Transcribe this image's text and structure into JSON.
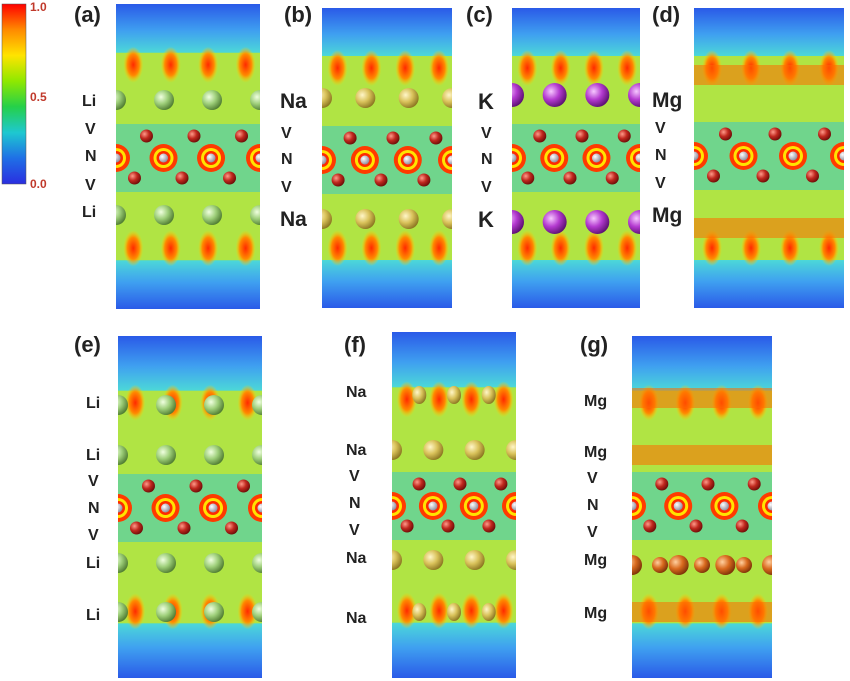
{
  "colorbar": {
    "ticks": [
      "1.0",
      "0.5",
      "0.0"
    ],
    "stops": [
      "#ff0000",
      "#ff8a00",
      "#ffe400",
      "#8fe800",
      "#25d04a",
      "#1ec8d0",
      "#1f6fe6",
      "#2a2ee0"
    ]
  },
  "panels": [
    {
      "label": "(a)",
      "labels": [
        "Li",
        "V",
        "N",
        "V",
        "Li"
      ]
    },
    {
      "label": "(b)",
      "labels": [
        "Na",
        "V",
        "N",
        "V",
        "Na"
      ]
    },
    {
      "label": "(c)",
      "labels": [
        "K",
        "V",
        "N",
        "V",
        "K"
      ]
    },
    {
      "label": "(d)",
      "labels": [
        "Mg",
        "V",
        "N",
        "V",
        "Mg"
      ]
    },
    {
      "label": "(e)",
      "labels": [
        "Li",
        "Li",
        "V",
        "N",
        "V",
        "Li",
        "Li"
      ]
    },
    {
      "label": "(f)",
      "labels": [
        "Na",
        "Na",
        "V",
        "N",
        "V",
        "Na",
        "Na"
      ]
    },
    {
      "label": "(g)",
      "labels": [
        "Mg",
        "Mg",
        "V",
        "N",
        "V",
        "Mg",
        "Mg"
      ]
    }
  ],
  "colors": {
    "V_atom": "#c0281e",
    "N_atom": "#b8b8c8",
    "Li_atom": "#9ecf7a",
    "Na_atom": "#d9c25a",
    "K_atom": "#b43ad0",
    "Mg_atom": "#d96a1e"
  }
}
